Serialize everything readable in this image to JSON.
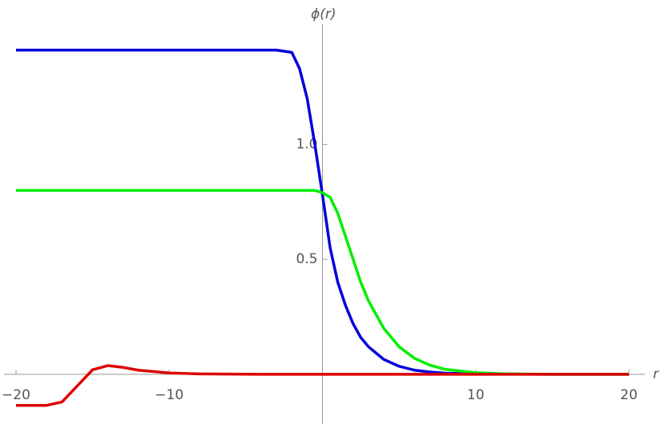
{
  "chart_data": {
    "type": "line",
    "xlabel": "r",
    "ylabel": "ϕ(r)",
    "x": [
      -20,
      -18,
      -17,
      -16,
      -15,
      -14,
      -13,
      -12,
      -10,
      -8,
      -6,
      -4,
      -3,
      -2,
      -1.5,
      -1,
      -0.5,
      0,
      0.5,
      1,
      1.5,
      2,
      2.5,
      3,
      4,
      5,
      6,
      7,
      8,
      10,
      12,
      15,
      20
    ],
    "series": [
      {
        "color": "#0000dd",
        "values": [
          1.41,
          1.41,
          1.41,
          1.41,
          1.41,
          1.41,
          1.41,
          1.41,
          1.41,
          1.41,
          1.41,
          1.41,
          1.41,
          1.4,
          1.33,
          1.2,
          1.0,
          0.78,
          0.55,
          0.4,
          0.3,
          0.22,
          0.16,
          0.12,
          0.065,
          0.035,
          0.018,
          0.01,
          0.005,
          0.002,
          0.001,
          0,
          0
        ]
      },
      {
        "color": "#00ee00",
        "values": [
          0.8,
          0.8,
          0.8,
          0.8,
          0.8,
          0.8,
          0.8,
          0.8,
          0.8,
          0.8,
          0.8,
          0.8,
          0.8,
          0.8,
          0.8,
          0.8,
          0.8,
          0.79,
          0.77,
          0.7,
          0.6,
          0.5,
          0.4,
          0.32,
          0.2,
          0.12,
          0.07,
          0.04,
          0.022,
          0.007,
          0.002,
          0,
          0
        ]
      },
      {
        "color": "#dd0000",
        "values": [
          -0.135,
          -0.135,
          -0.12,
          -0.05,
          0.02,
          0.038,
          0.03,
          0.018,
          0.006,
          0.002,
          0.001,
          0,
          0,
          0,
          0,
          0,
          0,
          0,
          0,
          0,
          0,
          0,
          0,
          0,
          0,
          0,
          0,
          0,
          0,
          0,
          0,
          0,
          0
        ]
      }
    ],
    "xlim": [
      -20,
      20
    ],
    "ylim": [
      -0.216,
      1.6
    ],
    "xticks": [
      {
        "value": -20,
        "label": "−20"
      },
      {
        "value": -10,
        "label": "−10"
      },
      10,
      20
    ],
    "yticks": [
      0.5,
      {
        "value": 1,
        "label": "1.0"
      }
    ]
  }
}
